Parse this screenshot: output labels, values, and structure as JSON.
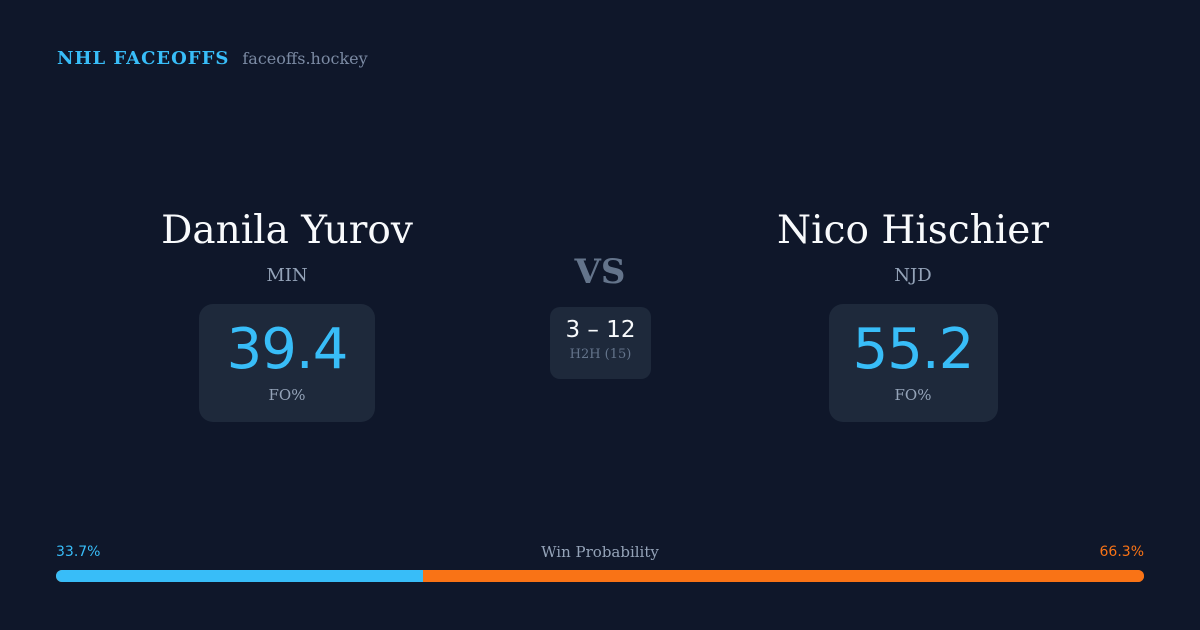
{
  "brand": {
    "name": "NHL FACEOFFS",
    "url": "faceoffs.hockey"
  },
  "players": [
    {
      "name": "Danila Yurov",
      "team": "MIN",
      "fo_pct": "39.4",
      "fo_label": "FO%"
    },
    {
      "name": "Nico Hischier",
      "team": "NJD",
      "fo_pct": "55.2",
      "fo_label": "FO%"
    }
  ],
  "vs_label": "VS",
  "h2h": {
    "score": "3 – 12",
    "label": "H2H (15)"
  },
  "win_probability": {
    "title": "Win Probability",
    "left_label": "33.7%",
    "right_label": "66.3%",
    "left_value": 33.7,
    "right_value": 66.3
  },
  "colors": {
    "background": "#0f172a",
    "accent_left": "#38bdf8",
    "accent_right": "#f97316",
    "card": "#1e293b"
  }
}
